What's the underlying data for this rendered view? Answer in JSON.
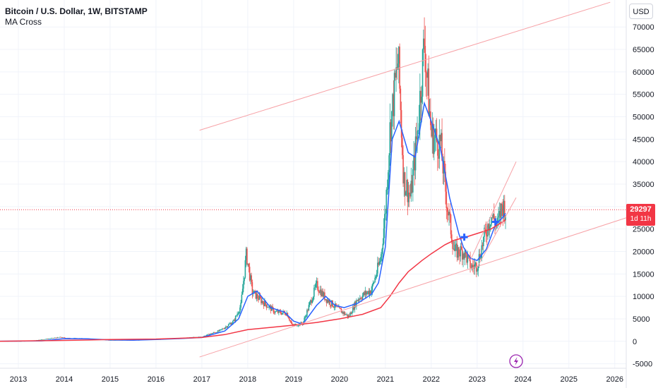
{
  "header": {
    "symbol_title": "Bitcoin / U.S. Dollar, 1W, BITSTAMP",
    "study_label": "MA Cross",
    "currency_button": "USD"
  },
  "price_badge": {
    "price": "29297",
    "countdown": "1d 11h",
    "color": "#f23645"
  },
  "colors": {
    "up": "#26a69a",
    "down": "#ef5350",
    "ma_fast": "#2962ff",
    "ma_slow": "#f23645",
    "trendline": "#f7a1a6"
  },
  "icons": {
    "bolt": "lightning-bolt-icon"
  },
  "chart_data": {
    "type": "candlestick",
    "title": "Bitcoin / U.S. Dollar, 1W, BITSTAMP",
    "ylim": [
      -6000,
      76000
    ],
    "xlim": [
      2012.6,
      2026.25
    ],
    "y_ticks": [
      70000,
      65000,
      60000,
      55000,
      50000,
      45000,
      40000,
      35000,
      30000,
      25000,
      20000,
      15000,
      10000,
      5000,
      0,
      -5000
    ],
    "x_ticks": [
      2013,
      2014,
      2015,
      2016,
      2017,
      2018,
      2019,
      2020,
      2021,
      2022,
      2023,
      2024,
      2025,
      2026
    ],
    "last_price": 29297,
    "price_series": [
      [
        2012.6,
        10
      ],
      [
        2013.0,
        20
      ],
      [
        2013.3,
        120
      ],
      [
        2013.9,
        900
      ],
      [
        2014.1,
        700
      ],
      [
        2014.5,
        600
      ],
      [
        2015.0,
        250
      ],
      [
        2015.5,
        250
      ],
      [
        2016.0,
        420
      ],
      [
        2016.5,
        650
      ],
      [
        2017.0,
        1000
      ],
      [
        2017.4,
        2400
      ],
      [
        2017.7,
        4500
      ],
      [
        2017.85,
        8000
      ],
      [
        2017.97,
        19500
      ],
      [
        2018.1,
        11000
      ],
      [
        2018.3,
        9000
      ],
      [
        2018.6,
        6500
      ],
      [
        2018.85,
        6300
      ],
      [
        2018.97,
        3500
      ],
      [
        2019.2,
        4000
      ],
      [
        2019.5,
        12500
      ],
      [
        2019.7,
        9500
      ],
      [
        2019.97,
        7200
      ],
      [
        2020.2,
        5500
      ],
      [
        2020.4,
        9500
      ],
      [
        2020.7,
        11500
      ],
      [
        2020.9,
        18500
      ],
      [
        2021.0,
        29000
      ],
      [
        2021.1,
        47000
      ],
      [
        2021.28,
        63000
      ],
      [
        2021.4,
        36000
      ],
      [
        2021.55,
        32000
      ],
      [
        2021.7,
        47000
      ],
      [
        2021.85,
        67000
      ],
      [
        2022.0,
        46000
      ],
      [
        2022.2,
        44000
      ],
      [
        2022.35,
        30000
      ],
      [
        2022.5,
        20000
      ],
      [
        2022.7,
        20000
      ],
      [
        2022.88,
        16500
      ],
      [
        2023.0,
        17000
      ],
      [
        2023.15,
        23000
      ],
      [
        2023.3,
        28000
      ],
      [
        2023.45,
        26000
      ],
      [
        2023.55,
        30500
      ],
      [
        2023.62,
        29297
      ]
    ],
    "series": [
      {
        "values": [
          [
            2012.6,
            30
          ],
          [
            2013.5,
            100
          ],
          [
            2014.0,
            600
          ],
          [
            2014.5,
            550
          ],
          [
            2015.0,
            330
          ],
          [
            2015.5,
            250
          ],
          [
            2016.0,
            400
          ],
          [
            2016.5,
            600
          ],
          [
            2017.0,
            850
          ],
          [
            2017.5,
            2300
          ],
          [
            2017.8,
            5000
          ],
          [
            2018.0,
            10000
          ],
          [
            2018.2,
            11200
          ],
          [
            2018.5,
            7500
          ],
          [
            2018.8,
            6500
          ],
          [
            2019.0,
            4500
          ],
          [
            2019.2,
            3800
          ],
          [
            2019.5,
            8000
          ],
          [
            2019.7,
            10000
          ],
          [
            2019.9,
            8000
          ],
          [
            2020.1,
            7500
          ],
          [
            2020.4,
            8500
          ],
          [
            2020.7,
            10500
          ],
          [
            2020.85,
            13000
          ],
          [
            2021.0,
            21000
          ],
          [
            2021.15,
            45000
          ],
          [
            2021.3,
            49000
          ],
          [
            2021.5,
            42000
          ],
          [
            2021.65,
            41000
          ],
          [
            2021.85,
            53000
          ],
          [
            2022.0,
            49000
          ],
          [
            2022.2,
            43000
          ],
          [
            2022.4,
            32000
          ],
          [
            2022.6,
            24000
          ],
          [
            2022.7,
            21000
          ],
          [
            2022.85,
            18500
          ],
          [
            2023.0,
            18000
          ],
          [
            2023.2,
            20500
          ],
          [
            2023.4,
            26000
          ],
          [
            2023.55,
            27500
          ],
          [
            2023.62,
            28500
          ]
        ]
      },
      {
        "values": [
          [
            2012.6,
            20
          ],
          [
            2014.0,
            200
          ],
          [
            2015.0,
            400
          ],
          [
            2016.0,
            500
          ],
          [
            2017.0,
            850
          ],
          [
            2017.5,
            1500
          ],
          [
            2018.0,
            2600
          ],
          [
            2018.5,
            3100
          ],
          [
            2019.0,
            3600
          ],
          [
            2019.5,
            4200
          ],
          [
            2020.0,
            5000
          ],
          [
            2020.5,
            6000
          ],
          [
            2020.9,
            7500
          ],
          [
            2021.1,
            10000
          ],
          [
            2021.3,
            13000
          ],
          [
            2021.5,
            15500
          ],
          [
            2021.8,
            18000
          ],
          [
            2022.0,
            19500
          ],
          [
            2022.3,
            21500
          ],
          [
            2022.5,
            22500
          ],
          [
            2022.75,
            23200
          ],
          [
            2023.0,
            24000
          ],
          [
            2023.3,
            25000
          ],
          [
            2023.62,
            27000
          ]
        ]
      }
    ],
    "cross_markers": [
      [
        2022.72,
        23200
      ],
      [
        2023.4,
        26600
      ]
    ],
    "trendlines": [
      [
        [
          2016.95,
          47000
        ],
        [
          2025.9,
          75500
        ]
      ],
      [
        [
          2016.95,
          -3500
        ],
        [
          2026.25,
          27500
        ]
      ],
      [
        [
          2022.85,
          18000
        ],
        [
          2023.85,
          40000
        ]
      ],
      [
        [
          2023.0,
          16500
        ],
        [
          2023.85,
          32000
        ]
      ]
    ],
    "last_price_line": true
  }
}
